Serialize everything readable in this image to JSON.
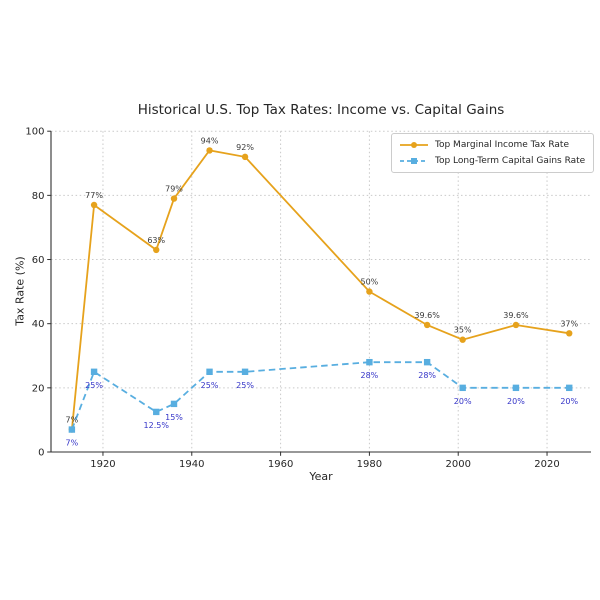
{
  "chart_data": {
    "type": "line",
    "title": "Historical U.S. Top Tax Rates: Income vs. Capital Gains",
    "xlabel": "Year",
    "ylabel": "Tax Rate (%)",
    "x": [
      1913,
      1918,
      1932,
      1936,
      1944,
      1952,
      1980,
      1993,
      2001,
      2013,
      2025
    ],
    "xticks": [
      1920,
      1940,
      1960,
      1980,
      2000,
      2020
    ],
    "yticks": [
      0,
      20,
      40,
      60,
      80,
      100
    ],
    "xlim": [
      1908.3,
      2029.9
    ],
    "ylim": [
      0,
      100
    ],
    "grid": "dotted",
    "legend_position": "upper-right",
    "series": [
      {
        "name": "Top Marginal Income Tax Rate",
        "color": "#E6A21C",
        "line_style": "solid",
        "marker": "circle",
        "values": [
          7,
          77,
          63,
          79,
          94,
          92,
          50,
          39.6,
          35,
          39.6,
          37
        ],
        "point_labels": [
          "7%",
          "77%",
          "63%",
          "79%",
          "94%",
          "92%",
          "50%",
          "39.6%",
          "35%",
          "39.6%",
          "37%"
        ],
        "label_color": "#3A3A3A",
        "label_side": "above"
      },
      {
        "name": "Top Long-Term Capital Gains Rate",
        "color": "#58AEE0",
        "line_style": "dashed",
        "marker": "square",
        "values": [
          7,
          25,
          12.5,
          15,
          25,
          25,
          28,
          28,
          20,
          20,
          20
        ],
        "point_labels": [
          "7%",
          "25%",
          "12.5%",
          "15%",
          "25%",
          "25%",
          "28%",
          "28%",
          "20%",
          "20%",
          "20%"
        ],
        "label_color": "#3434C8",
        "label_side": "below"
      }
    ]
  }
}
